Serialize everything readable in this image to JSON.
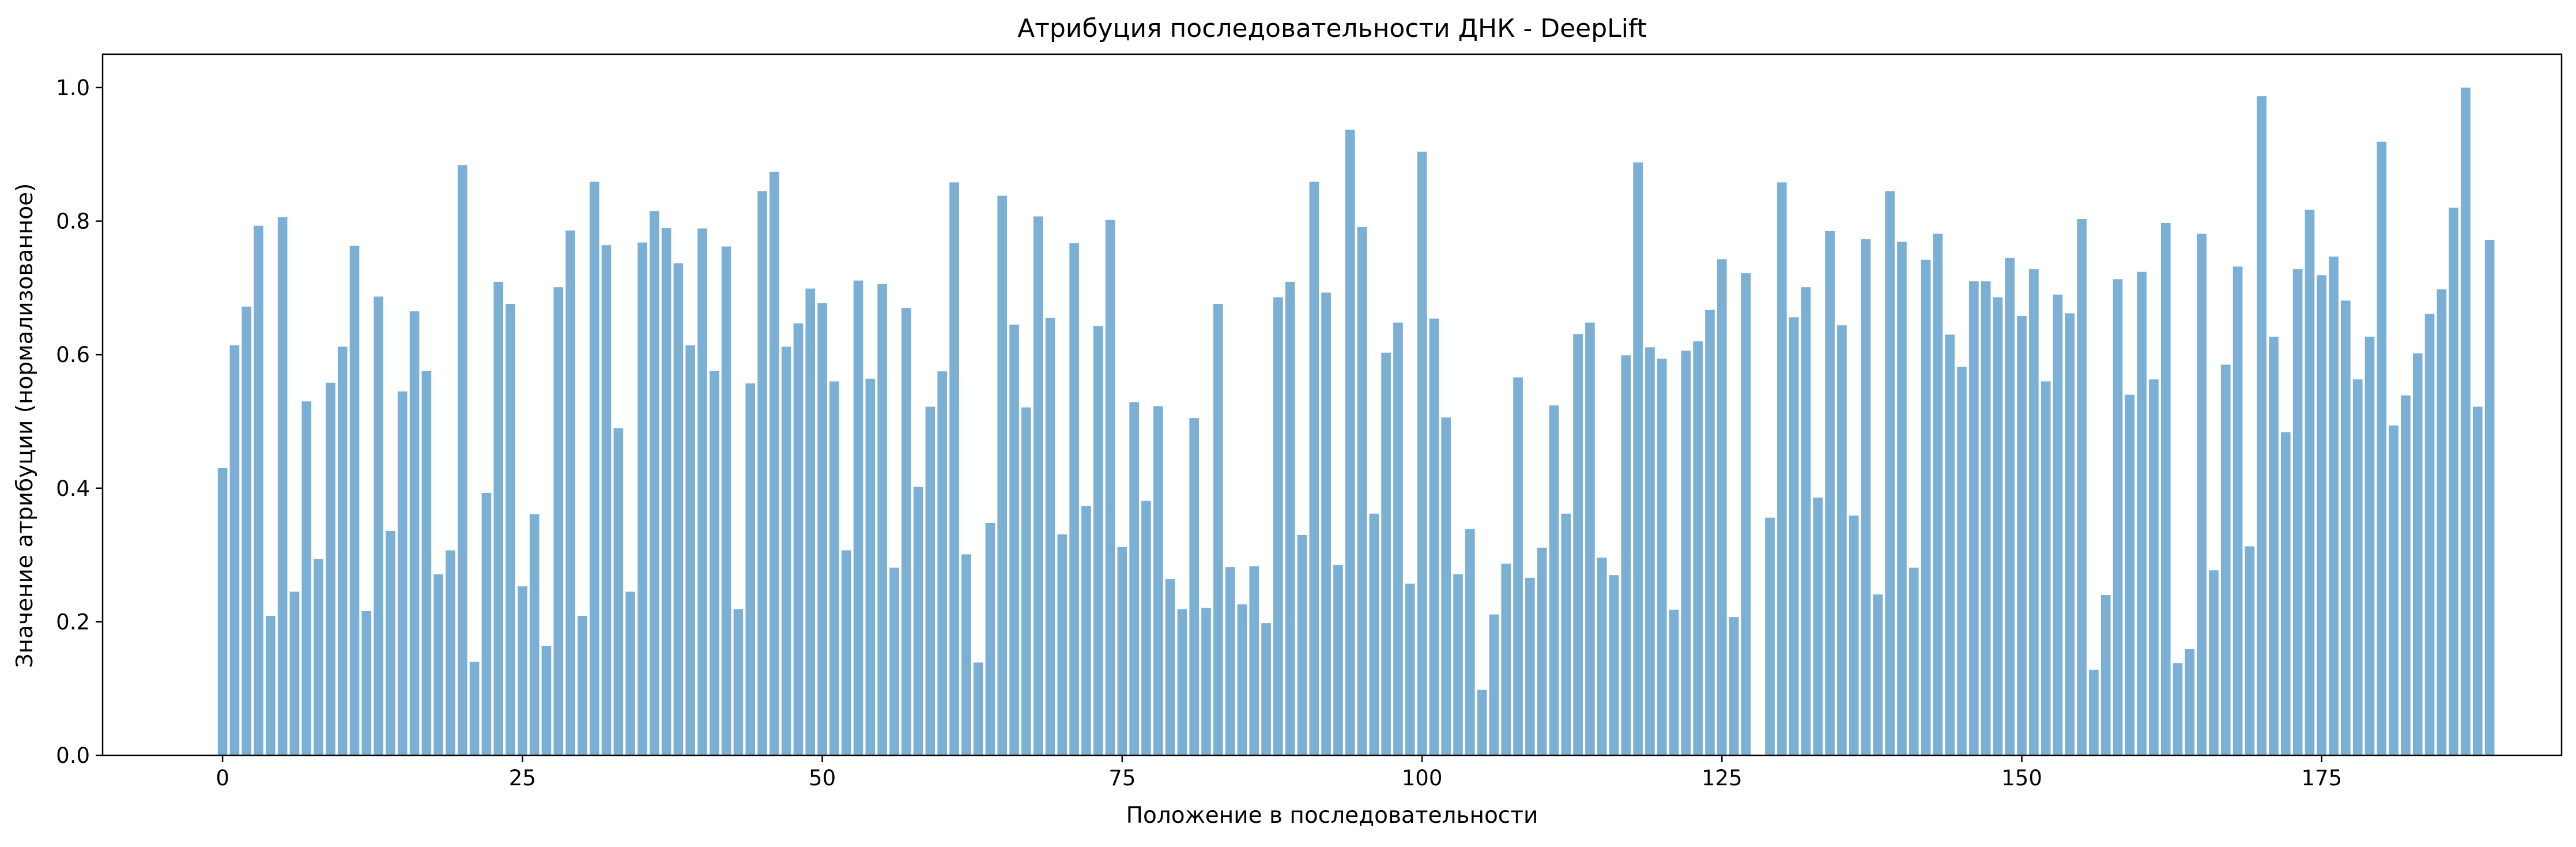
{
  "chart_data": {
    "type": "bar",
    "title": "Атрибуция последовательности ДНК - DeepLift",
    "xlabel": "Положение в последовательности",
    "ylabel": "Значение атрибуции (нормализованное)",
    "xlim": [
      -10,
      195
    ],
    "ylim": [
      0,
      1.05
    ],
    "xticks": [
      0,
      25,
      50,
      75,
      100,
      125,
      150,
      175
    ],
    "yticks": [
      0.0,
      0.2,
      0.4,
      0.6,
      0.8,
      1.0
    ],
    "ytick_labels": [
      "0.0",
      "0.2",
      "0.4",
      "0.6",
      "0.8",
      "1.0"
    ],
    "bar_color": "#7bafd4",
    "grid": false,
    "legend": "none",
    "x": [
      0,
      1,
      2,
      3,
      4,
      5,
      6,
      7,
      8,
      9,
      10,
      11,
      12,
      13,
      14,
      15,
      16,
      17,
      18,
      19,
      20,
      21,
      22,
      23,
      24,
      25,
      26,
      27,
      28,
      29,
      30,
      31,
      32,
      33,
      34,
      35,
      36,
      37,
      38,
      39,
      40,
      41,
      42,
      43,
      44,
      45,
      46,
      47,
      48,
      49,
      50,
      51,
      52,
      53,
      54,
      55,
      56,
      57,
      58,
      59,
      60,
      61,
      62,
      63,
      64,
      65,
      66,
      67,
      68,
      69,
      70,
      71,
      72,
      73,
      74,
      75,
      76,
      77,
      78,
      79,
      80,
      81,
      82,
      83,
      84,
      85,
      86,
      87,
      88,
      89,
      90,
      91,
      92,
      93,
      94,
      95,
      96,
      97,
      98,
      99,
      100,
      101,
      102,
      103,
      104,
      105,
      106,
      107,
      108,
      109,
      110,
      111,
      112,
      113,
      114,
      115,
      116,
      117,
      118,
      119,
      120,
      121,
      122,
      123,
      124,
      125,
      126,
      127,
      128,
      129,
      130,
      131,
      132,
      133,
      134,
      135,
      136,
      137,
      138,
      139,
      140,
      141,
      142,
      143,
      144,
      145,
      146,
      147,
      148,
      149,
      150,
      151,
      152,
      153,
      154,
      155,
      156,
      157,
      158,
      159,
      160,
      161,
      162,
      163,
      164,
      165,
      166,
      167,
      168,
      169,
      170,
      171,
      172,
      173,
      174,
      175,
      176,
      177,
      178,
      179,
      180,
      181,
      182,
      183,
      184,
      185,
      186,
      187,
      188,
      189
    ],
    "values": [
      0.43,
      0.614,
      0.672,
      0.793,
      0.209,
      0.806,
      0.245,
      0.53,
      0.294,
      0.558,
      0.612,
      0.763,
      0.216,
      0.687,
      0.336,
      0.545,
      0.665,
      0.576,
      0.271,
      0.307,
      0.884,
      0.14,
      0.393,
      0.709,
      0.676,
      0.253,
      0.361,
      0.164,
      0.701,
      0.786,
      0.209,
      0.859,
      0.764,
      0.49,
      0.245,
      0.768,
      0.815,
      0.79,
      0.737,
      0.614,
      0.789,
      0.576,
      0.762,
      0.219,
      0.557,
      0.845,
      0.874,
      0.612,
      0.647,
      0.699,
      0.677,
      0.56,
      0.307,
      0.711,
      0.564,
      0.706,
      0.281,
      0.67,
      0.402,
      0.522,
      0.575,
      0.858,
      0.301,
      0.139,
      0.348,
      0.838,
      0.645,
      0.521,
      0.807,
      0.655,
      0.331,
      0.767,
      0.373,
      0.643,
      0.802,
      0.312,
      0.529,
      0.381,
      0.523,
      0.264,
      0.219,
      0.505,
      0.221,
      0.676,
      0.282,
      0.226,
      0.283,
      0.198,
      0.686,
      0.709,
      0.33,
      0.859,
      0.693,
      0.285,
      0.937,
      0.791,
      0.362,
      0.603,
      0.648,
      0.257,
      0.904,
      0.654,
      0.506,
      0.271,
      0.339,
      0.098,
      0.211,
      0.287,
      0.566,
      0.266,
      0.311,
      0.524,
      0.362,
      0.631,
      0.648,
      0.296,
      0.27,
      0.599,
      0.888,
      0.611,
      0.594,
      0.218,
      0.606,
      0.62,
      0.667,
      0.743,
      0.207,
      0.722,
      0.0,
      0.356,
      0.858,
      0.656,
      0.701,
      0.386,
      0.785,
      0.644,
      0.359,
      0.773,
      0.241,
      0.845,
      0.769,
      0.281,
      0.742,
      0.781,
      0.63,
      0.582,
      0.71,
      0.71,
      0.686,
      0.745,
      0.658,
      0.728,
      0.56,
      0.69,
      0.662,
      0.803,
      0.128,
      0.24,
      0.713,
      0.54,
      0.724,
      0.563,
      0.797,
      0.138,
      0.159,
      0.781,
      0.277,
      0.585,
      0.732,
      0.313,
      0.987,
      0.627,
      0.484,
      0.728,
      0.817,
      0.719,
      0.747,
      0.681,
      0.563,
      0.627,
      0.919,
      0.494,
      0.539,
      0.602,
      0.661,
      0.698,
      0.82,
      1.0,
      0.522,
      0.772
    ]
  }
}
